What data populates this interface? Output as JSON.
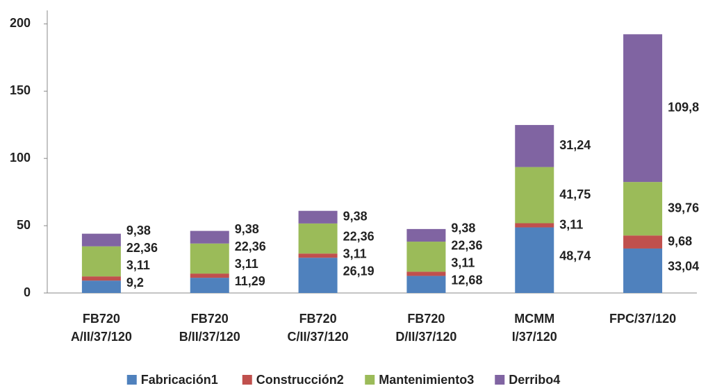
{
  "chart_data": {
    "type": "stacked_bar",
    "categories": [
      [
        "FB720",
        "A/II/37/120"
      ],
      [
        "FB720",
        "B/II/37/120"
      ],
      [
        "FB720",
        "C/II/37/120"
      ],
      [
        "FB720",
        "D/II/37/120"
      ],
      [
        "MCMM",
        "I/37/120"
      ],
      [
        "FPC/37/120"
      ]
    ],
    "series": [
      {
        "name": "Fabricación1",
        "color": "#4f81bd",
        "values": [
          9.2,
          11.29,
          26.19,
          12.68,
          48.74,
          33.04
        ],
        "value_labels": [
          "9,2",
          "11,29",
          "26,19",
          "12,68",
          "48,74",
          "33,04"
        ]
      },
      {
        "name": "Construcción2",
        "color": "#c0504d",
        "values": [
          3.11,
          3.11,
          3.11,
          3.11,
          3.11,
          9.68
        ],
        "value_labels": [
          "3,11",
          "3,11",
          "3,11",
          "3,11",
          "3,11",
          "9,68"
        ]
      },
      {
        "name": "Mantenimiento3",
        "color": "#9bbb59",
        "values": [
          22.36,
          22.36,
          22.36,
          22.36,
          41.75,
          39.76
        ],
        "value_labels": [
          "22,36",
          "22,36",
          "22,36",
          "22,36",
          "41,75",
          "39,76"
        ]
      },
      {
        "name": "Derribo4",
        "color": "#8064a2",
        "values": [
          9.38,
          9.38,
          9.38,
          9.38,
          31.24,
          109.8
        ],
        "value_labels": [
          "9,38",
          "9,38",
          "9,38",
          "9,38",
          "31,24",
          "109,8"
        ]
      }
    ],
    "ylim": [
      0,
      210
    ],
    "yticks": [
      0,
      50,
      100,
      150,
      200
    ],
    "grid": false,
    "legend": "bottom"
  }
}
